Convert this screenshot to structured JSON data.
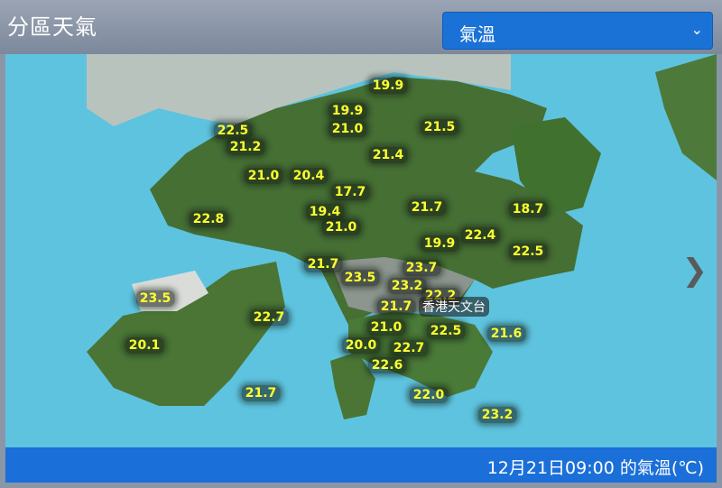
{
  "header": {
    "title": "分區天氣",
    "select_value": "氣溫",
    "select_icon": "chevron-down-icon"
  },
  "map": {
    "landmark": "香港天文台",
    "next_icon": "chevron-right-icon",
    "readings": [
      "19.9",
      "19.9",
      "21.0",
      "22.5",
      "21.2",
      "21.5",
      "21.4",
      "21.0",
      "20.4",
      "17.7",
      "21.7",
      "18.7",
      "19.4",
      "22.8",
      "21.0",
      "22.4",
      "19.9",
      "22.5",
      "21.7",
      "23.7",
      "23.5",
      "23.2",
      "22.2",
      "23.5",
      "21.7",
      "22.7",
      "21.0",
      "22.5",
      "21.6",
      "20.1",
      "20.0",
      "22.7",
      "22.6",
      "21.7",
      "22.0",
      "23.2"
    ],
    "label_color": "#ffff2e",
    "sea_color": "#5ec3df",
    "land_color": "#3f6e2e"
  },
  "footer": {
    "caption": "12月21日09:00 的氣溫(℃)"
  }
}
